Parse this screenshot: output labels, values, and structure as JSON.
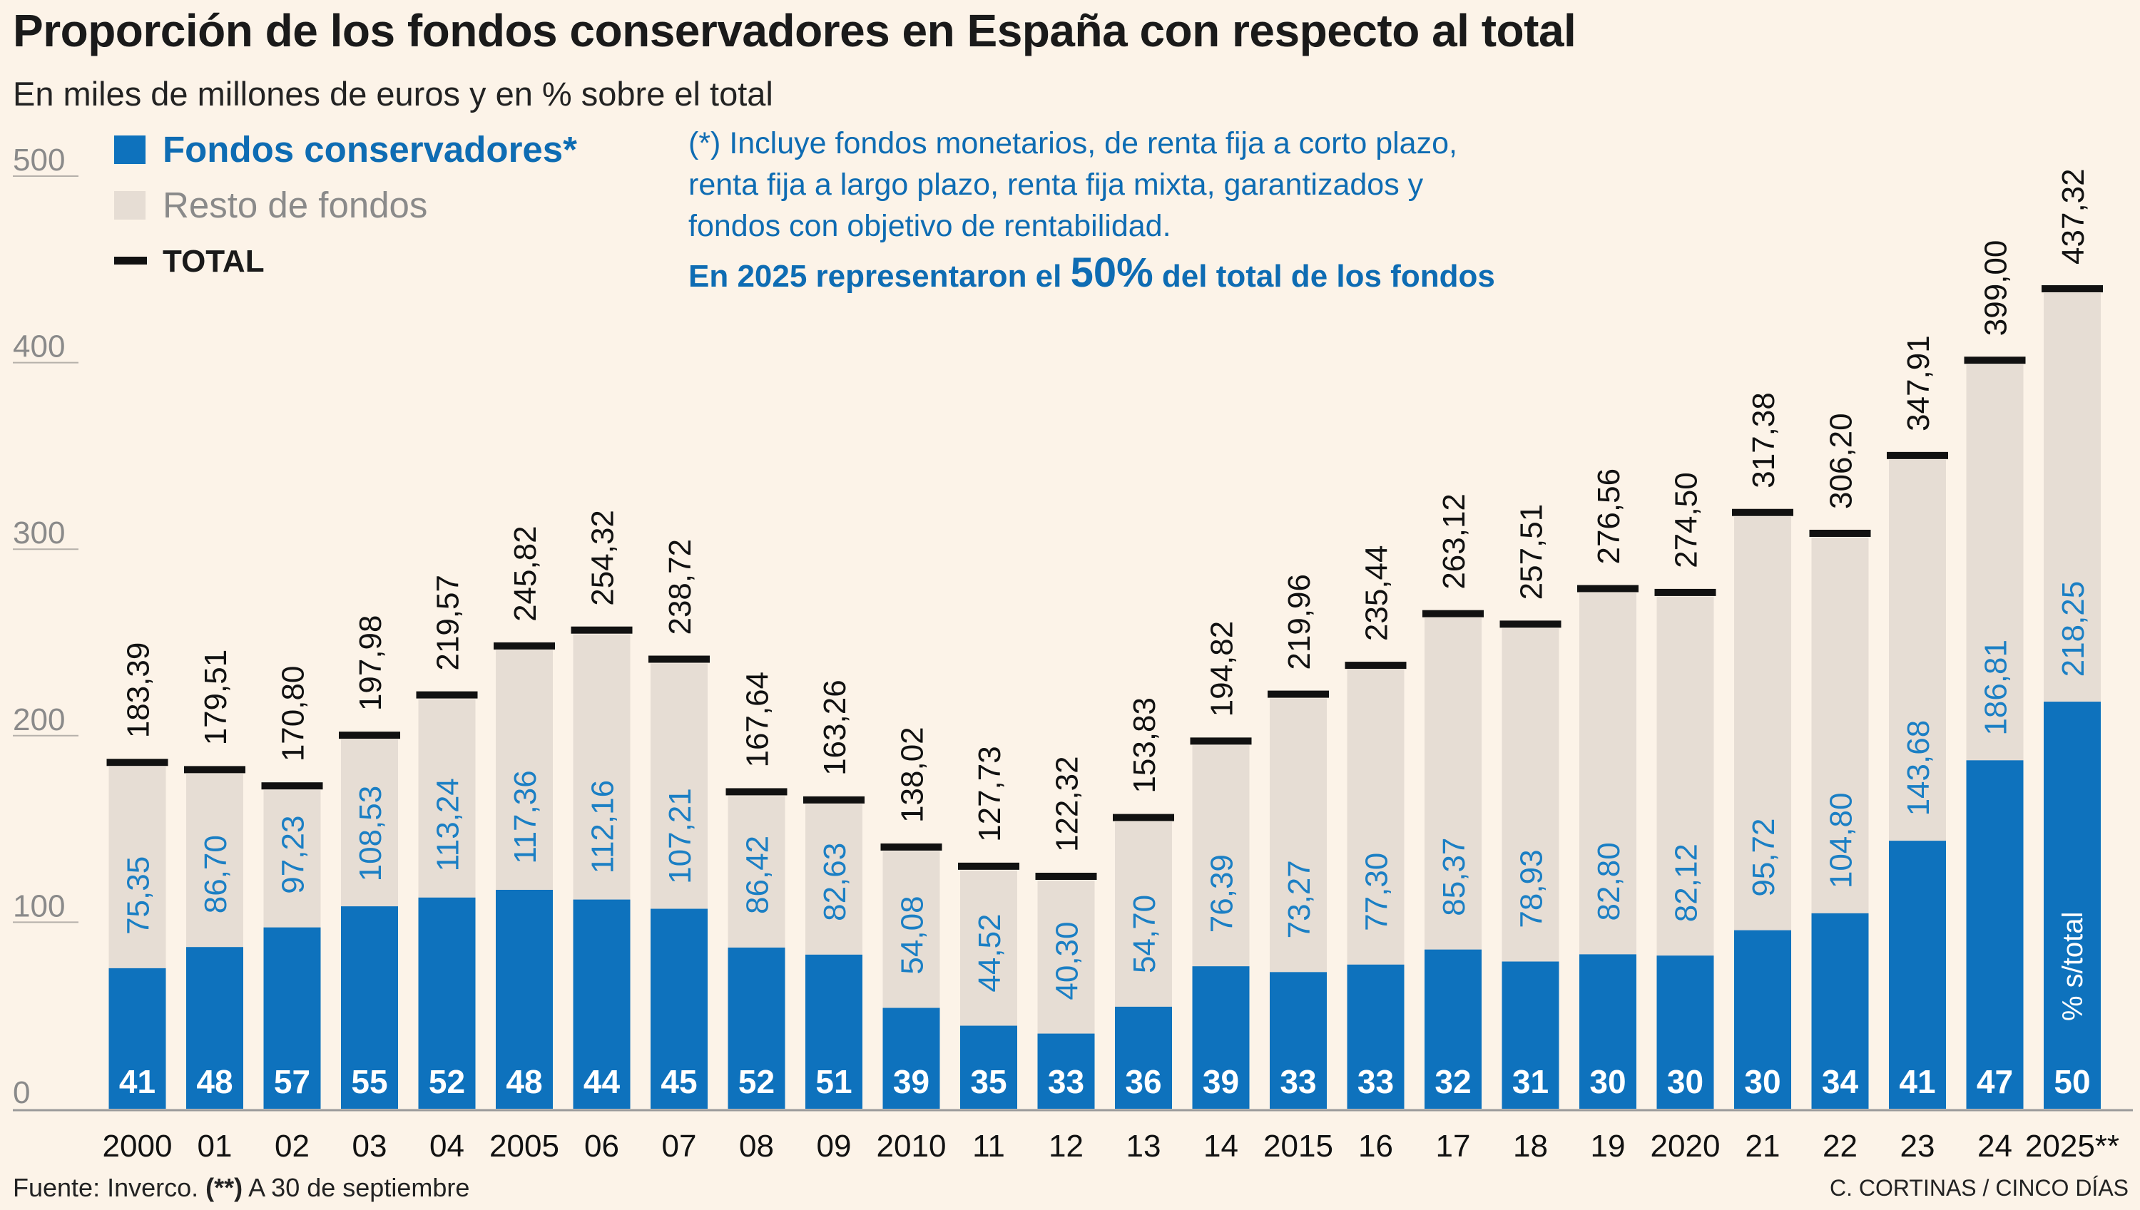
{
  "title": "Proporción de los fondos conservadores en España con respecto al total",
  "subtitle": "En miles de millones de euros y en % sobre el total",
  "legend": {
    "conservative": "Fondos conservadores*",
    "rest": "Resto de fondos",
    "total": "TOTAL"
  },
  "note": {
    "line1": "(*) Incluye fondos monetarios, de renta fija a corto plazo,",
    "line2": "renta fija a largo plazo, renta fija mixta, garantizados y",
    "line3": "fondos con objetivo de rentabilidad.",
    "highlight_pre": "En 2025 representaron el ",
    "highlight_value": "50%",
    "highlight_post": " del total de los fondos"
  },
  "footer": {
    "source_pre": "Fuente: Inverco. ",
    "source_mark": "(**)",
    "source_post": " A 30 de septiembre",
    "credit": "C. CORTINAS / CINCO DÍAS"
  },
  "colors": {
    "conservative": "#0e72bd",
    "rest": "#e6ddd4",
    "total_marker": "#111111",
    "value_label": "#1b7fc4",
    "background": "#fcf3e8",
    "axis": "#888888"
  },
  "chart_data": {
    "type": "bar",
    "stacked": true,
    "title": "Proporción de los fondos conservadores en España con respecto al total",
    "ylabel": "En miles de millones de euros",
    "ylim": [
      0,
      500
    ],
    "yticks": [
      0,
      100,
      200,
      300,
      400,
      500
    ],
    "percent_axis_label": "% s/total",
    "categories": [
      "2000",
      "01",
      "02",
      "03",
      "04",
      "2005",
      "06",
      "07",
      "08",
      "09",
      "2010",
      "11",
      "12",
      "13",
      "14",
      "2015",
      "16",
      "17",
      "18",
      "19",
      "2020",
      "21",
      "22",
      "23",
      "24",
      "2025**"
    ],
    "series": [
      {
        "name": "Fondos conservadores*",
        "values": [
          75.35,
          86.7,
          97.23,
          108.53,
          113.24,
          117.36,
          112.16,
          107.21,
          86.42,
          82.63,
          54.08,
          44.52,
          40.3,
          54.7,
          76.39,
          73.27,
          77.3,
          85.37,
          78.93,
          82.8,
          82.12,
          95.72,
          104.8,
          143.68,
          186.81,
          218.25
        ],
        "labels": [
          "75,35",
          "86,70",
          "97,23",
          "108,53",
          "113,24",
          "117,36",
          "112,16",
          "107,21",
          "86,42",
          "82,63",
          "54,08",
          "44,52",
          "40,30",
          "54,70",
          "76,39",
          "73,27",
          "77,30",
          "85,37",
          "78,93",
          "82,80",
          "82,12",
          "95,72",
          "104,80",
          "143,68",
          "186,81",
          "218,25"
        ]
      },
      {
        "name": "TOTAL",
        "values": [
          183.39,
          179.51,
          170.8,
          197.98,
          219.57,
          245.82,
          254.32,
          238.72,
          167.64,
          163.26,
          138.02,
          127.73,
          122.32,
          153.83,
          194.82,
          219.96,
          235.44,
          263.12,
          257.51,
          276.56,
          274.5,
          317.38,
          306.2,
          347.91,
          399.0,
          437.32
        ],
        "labels": [
          "183,39",
          "179,51",
          "170,80",
          "197,98",
          "219,57",
          "245,82",
          "254,32",
          "238,72",
          "167,64",
          "163,26",
          "138,02",
          "127,73",
          "122,32",
          "153,83",
          "194,82",
          "219,96",
          "235,44",
          "263,12",
          "257,51",
          "276,56",
          "274,50",
          "317,38",
          "306,20",
          "347,91",
          "399,00",
          "437,32"
        ]
      }
    ],
    "percent_of_total": [
      41,
      48,
      57,
      55,
      52,
      48,
      44,
      45,
      52,
      51,
      39,
      35,
      33,
      36,
      39,
      33,
      33,
      32,
      31,
      30,
      30,
      30,
      34,
      41,
      47,
      50
    ]
  }
}
